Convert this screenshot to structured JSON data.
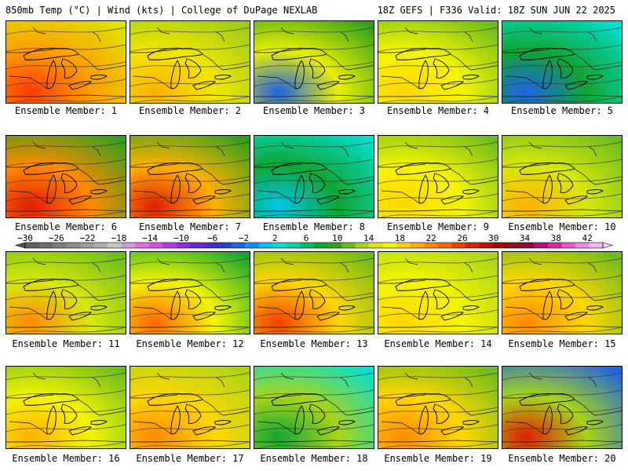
{
  "header": {
    "left": "850mb Temp (°C) | Wind (kts) | College of DuPage NEXLAB",
    "right": "18Z GEFS | F336 Valid: 18Z SUN JUN 22 2025"
  },
  "colorbar": {
    "tick_labels": [
      "-30",
      "-26",
      "-22",
      "-18",
      "-14",
      "-10",
      "-6",
      "-2",
      "2",
      "6",
      "10",
      "14",
      "18",
      "22",
      "26",
      "30",
      "34",
      "38",
      "42"
    ],
    "range_c": [
      -30,
      42
    ],
    "step_c": 2,
    "colors": [
      "#5f5f5f",
      "#6e6e6e",
      "#7d7d7d",
      "#8c8c8c",
      "#9b9b9b",
      "#b0b0b0",
      "#c8c8c8",
      "#d99ad9",
      "#e46fe4",
      "#d84fe8",
      "#b63ce0",
      "#8e2fd9",
      "#6a26cf",
      "#4a2ec9",
      "#2a3fd2",
      "#1e63e6",
      "#0f91f0",
      "#00c4ee",
      "#00e0d0",
      "#00d2a0",
      "#00bb62",
      "#10a633",
      "#2fa01d",
      "#6cbb1e",
      "#a8d41a",
      "#d8e80c",
      "#f5f500",
      "#ffd700",
      "#ffb100",
      "#ff8a00",
      "#ff6400",
      "#f43c00",
      "#e01e00",
      "#c40e00",
      "#a40000",
      "#861616",
      "#8c0a3c",
      "#b01078",
      "#d22aaa",
      "#e85ad0",
      "#f08ae4",
      "#f7b4f0"
    ]
  },
  "members": [
    {
      "label": "Ensemble Member: 1",
      "temp_tint": "#ff9d00",
      "corner": "#dde600",
      "accent": "#ff3c00"
    },
    {
      "label": "Ensemble Member: 2",
      "temp_tint": "#f1e600",
      "corner": "#9bcc1a",
      "accent": "#ffb100"
    },
    {
      "label": "Ensemble Member: 3",
      "temp_tint": "#e9ef00",
      "corner": "#2fa01d",
      "accent": "#1e63e6"
    },
    {
      "label": "Ensemble Member: 4",
      "temp_tint": "#f5f500",
      "corner": "#6cbb1e",
      "accent": "#ffd700"
    },
    {
      "label": "Ensemble Member: 5",
      "temp_tint": "#10a633",
      "corner": "#00e0d0",
      "accent": "#1e63e6"
    },
    {
      "label": "Ensemble Member: 6",
      "temp_tint": "#ff8a00",
      "corner": "#2fa01d",
      "accent": "#e01e00"
    },
    {
      "label": "Ensemble Member: 7",
      "temp_tint": "#ffb100",
      "corner": "#2fa01d",
      "accent": "#e01e00"
    },
    {
      "label": "Ensemble Member: 8",
      "temp_tint": "#10a633",
      "corner": "#00e0d0",
      "accent": "#00c4ee"
    },
    {
      "label": "Ensemble Member: 9",
      "temp_tint": "#f5f500",
      "corner": "#6cbb1e",
      "accent": "#ffd700"
    },
    {
      "label": "Ensemble Member: 10",
      "temp_tint": "#d8e80c",
      "corner": "#6cbb1e",
      "accent": "#ffb100"
    },
    {
      "label": "Ensemble Member: 11",
      "temp_tint": "#d8e80c",
      "corner": "#6cbb1e",
      "accent": "#ff8a00"
    },
    {
      "label": "Ensemble Member: 12",
      "temp_tint": "#f5f500",
      "corner": "#10a633",
      "accent": "#ff6400"
    },
    {
      "label": "Ensemble Member: 13",
      "temp_tint": "#ffd700",
      "corner": "#6cbb1e",
      "accent": "#f43c00"
    },
    {
      "label": "Ensemble Member: 14",
      "temp_tint": "#f5f500",
      "corner": "#a8d41a",
      "accent": "#ffd700"
    },
    {
      "label": "Ensemble Member: 15",
      "temp_tint": "#ffd700",
      "corner": "#6cbb1e",
      "accent": "#ff8a00"
    },
    {
      "label": "Ensemble Member: 16",
      "temp_tint": "#f5f500",
      "corner": "#6cbb1e",
      "accent": "#ffb100"
    },
    {
      "label": "Ensemble Member: 17",
      "temp_tint": "#ffd700",
      "corner": "#a8d41a",
      "accent": "#ff8a00"
    },
    {
      "label": "Ensemble Member: 18",
      "temp_tint": "#a8d41a",
      "corner": "#00e0d0",
      "accent": "#10a633"
    },
    {
      "label": "Ensemble Member: 19",
      "temp_tint": "#ffd700",
      "corner": "#6cbb1e",
      "accent": "#ff8a00"
    },
    {
      "label": "Ensemble Member: 20",
      "temp_tint": "#a8d41a",
      "corner": "#1e63e6",
      "accent": "#e01e00"
    }
  ]
}
